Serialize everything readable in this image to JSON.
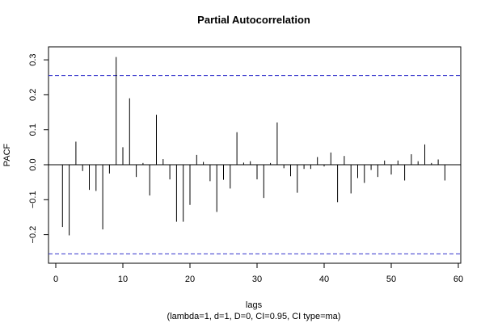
{
  "chart_data": {
    "type": "bar",
    "title": "Partial Autocorrelation",
    "xlabel": "lags",
    "subtitle": "(lambda=1, d=1, D=0, CI=0.95, CI type=ma)",
    "ylabel": "PACF",
    "xlim": [
      0,
      60
    ],
    "ylim": [
      -0.3,
      0.3
    ],
    "x_ticks": [
      0,
      10,
      20,
      30,
      40,
      50,
      60
    ],
    "y_ticks": [
      -0.2,
      -0.1,
      0.0,
      0.1,
      0.2,
      0.3
    ],
    "x_tick_labels": [
      "0",
      "10",
      "20",
      "30",
      "40",
      "50",
      "60"
    ],
    "y_tick_labels": [
      "−0.2",
      "−0.1",
      "0.0",
      "0.1",
      "0.2",
      "0.3"
    ],
    "confidence_bound": 0.255,
    "confidence_color": "#3333cc",
    "lags": [
      1,
      2,
      3,
      4,
      5,
      6,
      7,
      8,
      9,
      10,
      11,
      12,
      13,
      14,
      15,
      16,
      17,
      18,
      19,
      20,
      21,
      22,
      23,
      24,
      25,
      26,
      27,
      28,
      29,
      30,
      31,
      32,
      33,
      34,
      35,
      36,
      37,
      38,
      39,
      40,
      41,
      42,
      43,
      44,
      45,
      46,
      47,
      48,
      49,
      50,
      51,
      52,
      53,
      54,
      55,
      56,
      57,
      58
    ],
    "values": [
      -0.178,
      -0.202,
      0.066,
      -0.018,
      -0.072,
      -0.075,
      -0.185,
      -0.025,
      0.308,
      0.05,
      0.19,
      -0.035,
      0.005,
      -0.088,
      0.143,
      0.016,
      -0.042,
      -0.163,
      -0.163,
      -0.115,
      0.028,
      0.008,
      -0.047,
      -0.135,
      -0.043,
      -0.068,
      0.093,
      0.006,
      0.01,
      -0.042,
      -0.095,
      0.005,
      0.121,
      -0.01,
      -0.033,
      -0.08,
      -0.012,
      -0.012,
      0.022,
      -0.005,
      0.035,
      -0.107,
      0.025,
      -0.082,
      -0.038,
      -0.052,
      -0.015,
      -0.035,
      0.012,
      -0.028,
      0.012,
      -0.045,
      0.03,
      0.01,
      0.058,
      0.005,
      0.015,
      -0.045
    ]
  }
}
